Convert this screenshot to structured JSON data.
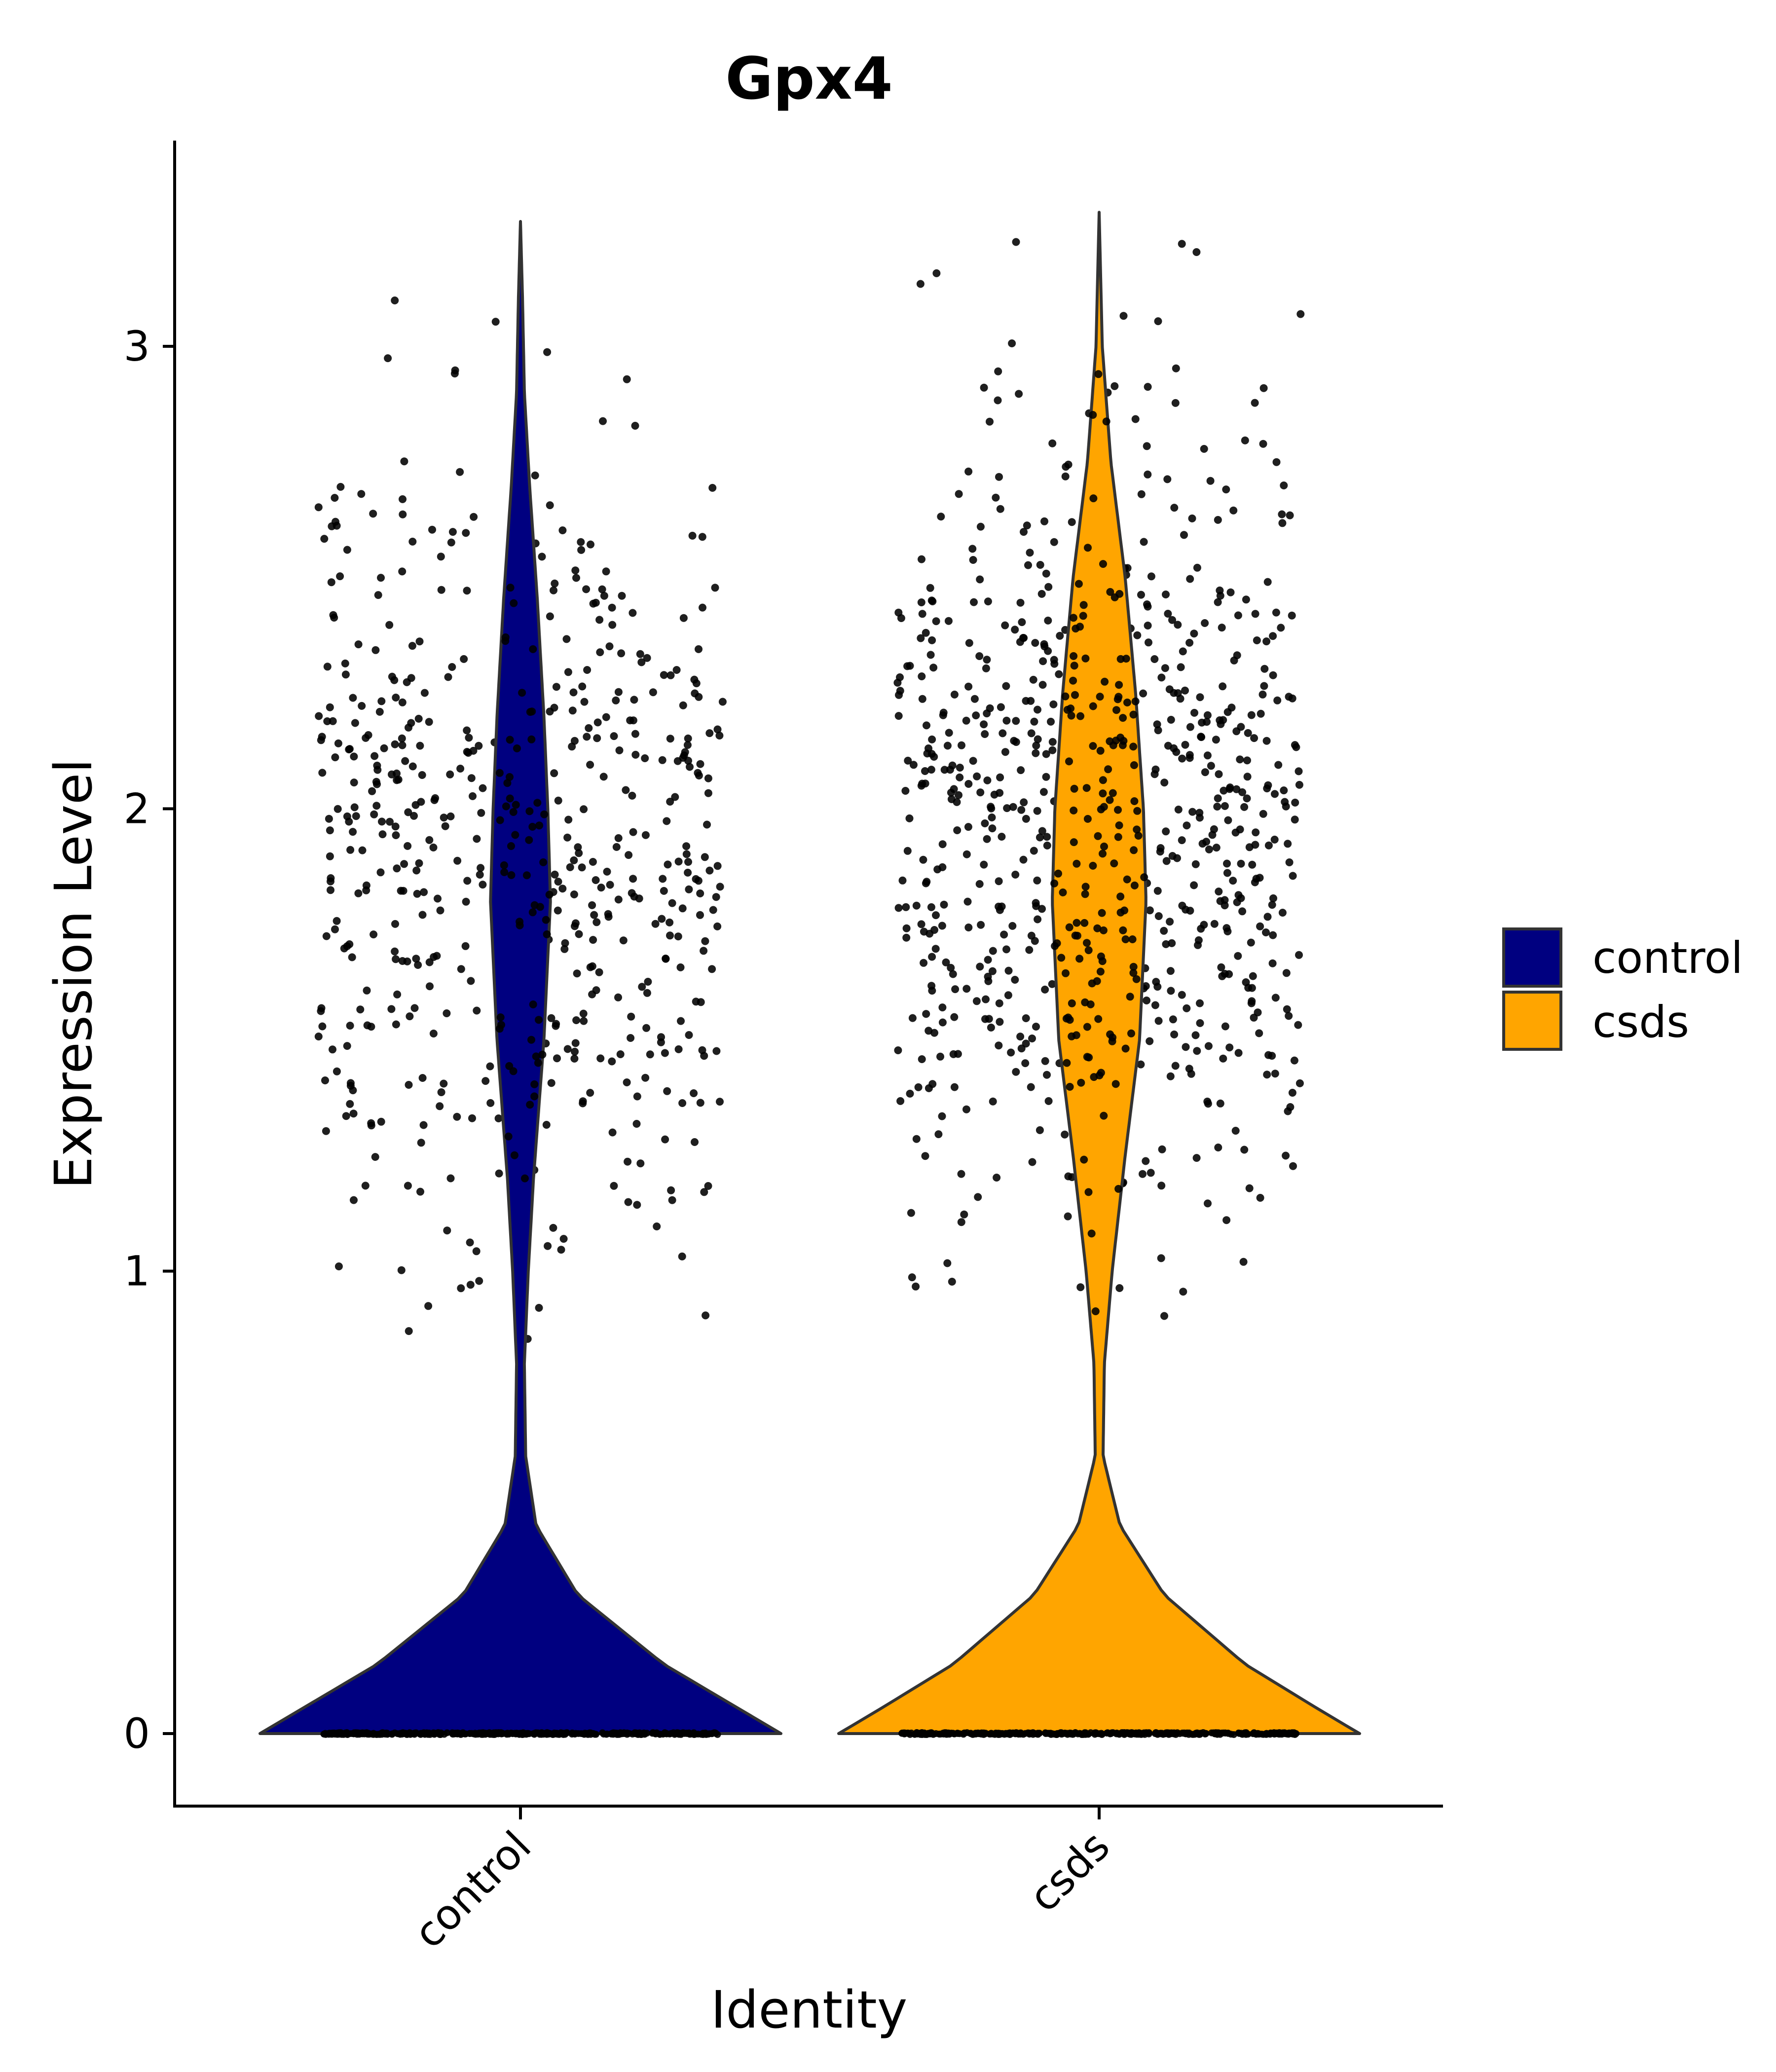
{
  "chart_data": {
    "type": "violin",
    "title": "Gpx4",
    "xlabel": "Identity",
    "ylabel": "Expression Level",
    "categories": [
      "control",
      "csds"
    ],
    "colors": {
      "control": "#000080",
      "csds": "#FFA500"
    },
    "ylim": [
      -0.16,
      3.46
    ],
    "yticks": [
      0,
      1,
      2,
      3
    ],
    "ytick_labels": [
      "0",
      "1",
      "2",
      "3"
    ],
    "grid": false,
    "legend": {
      "position": "right",
      "entries": [
        "control",
        "csds"
      ]
    },
    "series": [
      {
        "name": "control",
        "max_value": 3.27,
        "zero_fraction": 0.55,
        "nonzero_mode": 1.9,
        "nonzero_range": [
          0.85,
          3.27
        ],
        "density_profile": [
          {
            "y": 0.0,
            "w": 1.0
          },
          {
            "y": 0.05,
            "w": 0.85
          },
          {
            "y": 0.15,
            "w": 0.55
          },
          {
            "y": 0.3,
            "w": 0.22
          },
          {
            "y": 0.45,
            "w": 0.06
          },
          {
            "y": 0.6,
            "w": 0.02
          },
          {
            "y": 0.8,
            "w": 0.015
          },
          {
            "y": 1.0,
            "w": 0.03
          },
          {
            "y": 1.2,
            "w": 0.05
          },
          {
            "y": 1.5,
            "w": 0.09
          },
          {
            "y": 1.8,
            "w": 0.115
          },
          {
            "y": 2.0,
            "w": 0.105
          },
          {
            "y": 2.2,
            "w": 0.09
          },
          {
            "y": 2.45,
            "w": 0.065
          },
          {
            "y": 2.7,
            "w": 0.035
          },
          {
            "y": 2.9,
            "w": 0.015
          },
          {
            "y": 3.1,
            "w": 0.008
          },
          {
            "y": 3.27,
            "w": 0.0
          }
        ]
      },
      {
        "name": "csds",
        "max_value": 3.29,
        "zero_fraction": 0.45,
        "nonzero_mode": 1.95,
        "nonzero_range": [
          0.89,
          3.29
        ],
        "density_profile": [
          {
            "y": 0.0,
            "w": 1.0
          },
          {
            "y": 0.05,
            "w": 0.85
          },
          {
            "y": 0.15,
            "w": 0.56
          },
          {
            "y": 0.3,
            "w": 0.25
          },
          {
            "y": 0.45,
            "w": 0.08
          },
          {
            "y": 0.6,
            "w": 0.015
          },
          {
            "y": 0.8,
            "w": 0.02
          },
          {
            "y": 1.0,
            "w": 0.05
          },
          {
            "y": 1.25,
            "w": 0.1
          },
          {
            "y": 1.5,
            "w": 0.155
          },
          {
            "y": 1.8,
            "w": 0.18
          },
          {
            "y": 2.0,
            "w": 0.17
          },
          {
            "y": 2.25,
            "w": 0.14
          },
          {
            "y": 2.5,
            "w": 0.1
          },
          {
            "y": 2.75,
            "w": 0.045
          },
          {
            "y": 3.0,
            "w": 0.012
          },
          {
            "y": 3.29,
            "w": 0.0
          }
        ]
      }
    ]
  }
}
